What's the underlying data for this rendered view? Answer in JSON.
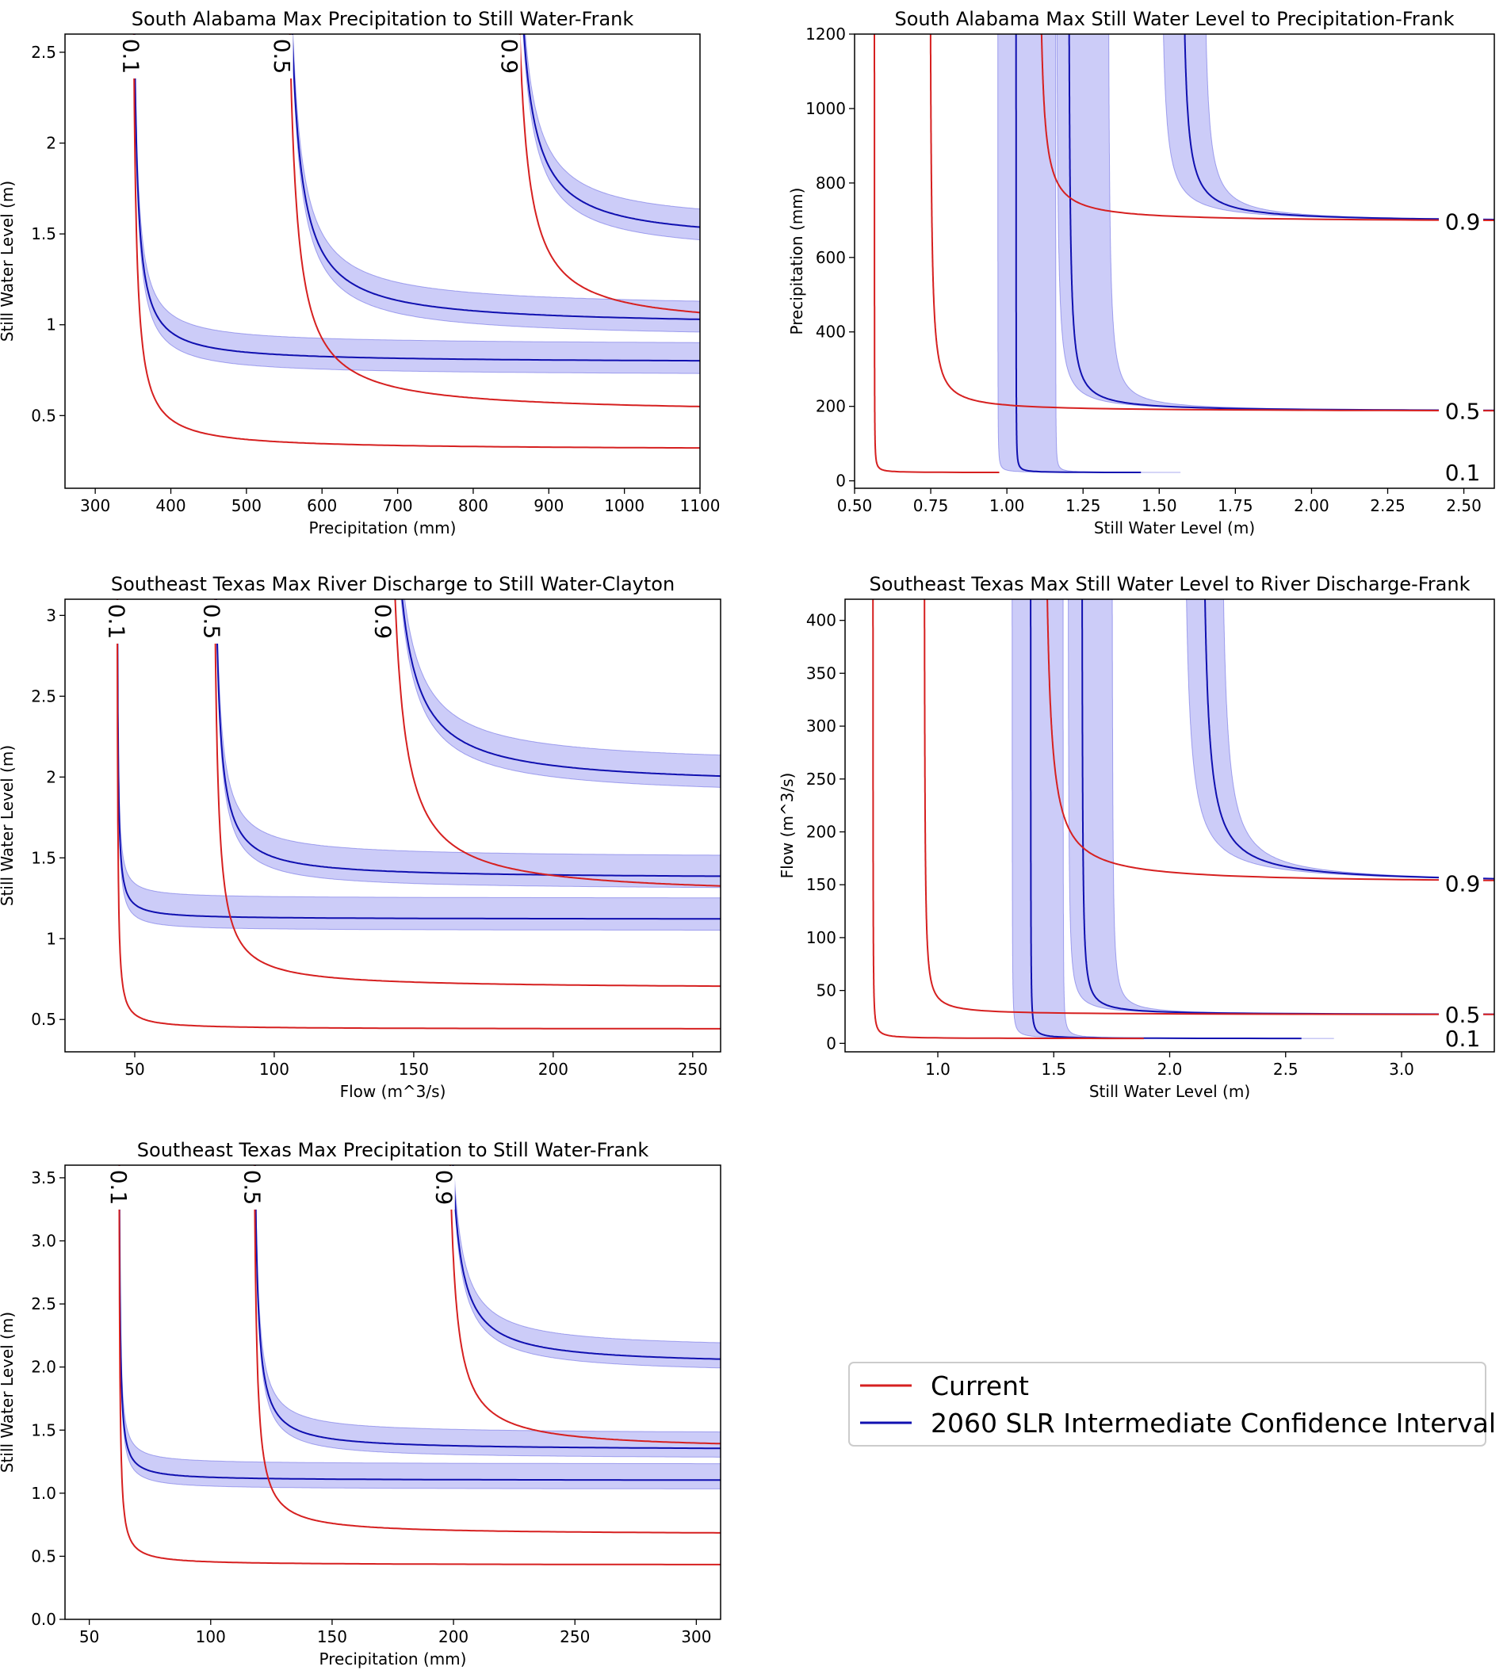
{
  "legend": {
    "items": [
      {
        "label": "Current",
        "color": "#d62020"
      },
      {
        "label": "2060 SLR Intermediate Confidence Interval",
        "color": "#1010b0"
      }
    ]
  },
  "chart_data": [
    {
      "type": "line",
      "id": "sa-precip",
      "title": "South Alabama Max Precipitation to Still Water-Frank",
      "xlabel": "Precipitation (mm)",
      "ylabel": "Still Water Level (m)",
      "xlim": [
        260,
        1100
      ],
      "ylim": [
        0.1,
        2.6
      ],
      "xticks": [
        300,
        400,
        500,
        600,
        700,
        800,
        900,
        1000,
        1100
      ],
      "yticks": [
        0.5,
        1.0,
        1.5,
        2.0,
        2.5
      ],
      "orientation": "vertical-asymptote",
      "contours": [
        {
          "level": "0.1",
          "current": {
            "asym_x": 347,
            "asym_y": 0.31,
            "k": 9
          },
          "slr": {
            "asym_x": 347,
            "asym_y": 0.79,
            "k": 9,
            "band_lo": -0.07,
            "band_hi": 0.1
          }
        },
        {
          "level": "0.5",
          "current": {
            "asym_x": 547,
            "asym_y": 0.51,
            "k": 22
          },
          "slr": {
            "asym_x": 547,
            "asym_y": 0.99,
            "k": 22,
            "band_lo": -0.07,
            "band_hi": 0.1
          }
        },
        {
          "level": "0.9",
          "current": {
            "asym_x": 848,
            "asym_y": 0.98,
            "k": 22
          },
          "slr": {
            "asym_x": 848,
            "asym_y": 1.45,
            "k": 22,
            "band_lo": -0.07,
            "band_hi": 0.1
          }
        }
      ]
    },
    {
      "type": "line",
      "id": "sa-swl",
      "title": "South Alabama Max Still Water Level to Precipitation-Frank",
      "xlabel": "Still Water Level (m)",
      "ylabel": "Precipitation (mm)",
      "xlim": [
        0.5,
        2.6
      ],
      "ylim": [
        -20,
        1200
      ],
      "xticks": [
        0.5,
        0.75,
        1.0,
        1.25,
        1.5,
        1.75,
        2.0,
        2.25,
        2.5
      ],
      "xtick_labels": [
        "0.50",
        "0.75",
        "1.00",
        "1.25",
        "1.50",
        "1.75",
        "2.00",
        "2.25",
        "2.50"
      ],
      "yticks": [
        0,
        200,
        400,
        600,
        800,
        1000,
        1200
      ],
      "orientation": "horizontal-asymptote",
      "contours": [
        {
          "level": "0.1",
          "current": {
            "asym_x": 0.565,
            "asym_y": 22,
            "k": 0.2
          },
          "slr": {
            "asym_x": 1.03,
            "asym_y": 22,
            "k": 0.2,
            "band_lo": -0.06,
            "band_hi": 0.13
          }
        },
        {
          "level": "0.5",
          "current": {
            "asym_x": 0.745,
            "asym_y": 186,
            "k": 4.5
          },
          "slr": {
            "asym_x": 1.2,
            "asym_y": 186,
            "k": 4.5,
            "band_lo": -0.04,
            "band_hi": 0.13
          }
        },
        {
          "level": "0.9",
          "current": {
            "asym_x": 1.1,
            "asym_y": 695,
            "k": 7
          },
          "slr": {
            "asym_x": 1.57,
            "asym_y": 695,
            "k": 7,
            "band_lo": -0.07,
            "band_hi": 0.07
          }
        }
      ]
    },
    {
      "type": "line",
      "id": "setx-flow",
      "title": "Southeast Texas Max River Discharge to Still Water-Clayton",
      "xlabel": "Flow (m^3/s)",
      "ylabel": "Still Water Level (m)",
      "xlim": [
        25,
        260
      ],
      "ylim": [
        0.3,
        3.1
      ],
      "xticks": [
        50,
        100,
        150,
        200,
        250
      ],
      "yticks": [
        0.5,
        1.0,
        1.5,
        2.0,
        2.5,
        3.0
      ],
      "orientation": "vertical-asymptote",
      "contours": [
        {
          "level": "0.1",
          "current": {
            "asym_x": 43.5,
            "asym_y": 0.44,
            "k": 0.6
          },
          "slr": {
            "asym_x": 43.5,
            "asym_y": 1.12,
            "k": 0.6,
            "band_lo": -0.07,
            "band_hi": 0.13
          }
        },
        {
          "level": "0.5",
          "current": {
            "asym_x": 77.5,
            "asym_y": 0.69,
            "k": 3
          },
          "slr": {
            "asym_x": 77.5,
            "asym_y": 1.37,
            "k": 3,
            "band_lo": -0.07,
            "band_hi": 0.13
          }
        },
        {
          "level": "0.9",
          "current": {
            "asym_x": 139,
            "asym_y": 1.26,
            "k": 8
          },
          "slr": {
            "asym_x": 139,
            "asym_y": 1.94,
            "k": 8,
            "band_lo": -0.07,
            "band_hi": 0.13
          }
        }
      ]
    },
    {
      "type": "line",
      "id": "setx-swl",
      "title": "Southeast Texas Max Still Water Level to River Discharge-Frank",
      "xlabel": "Still Water Level (m)",
      "ylabel": "Flow (m^3/s)",
      "xlim": [
        0.6,
        3.4
      ],
      "ylim": [
        -8,
        420
      ],
      "xticks": [
        1.0,
        1.5,
        2.0,
        2.5,
        3.0
      ],
      "xtick_labels": [
        "1.0",
        "1.5",
        "2.0",
        "2.5",
        "3.0"
      ],
      "yticks": [
        0,
        50,
        100,
        150,
        200,
        250,
        300,
        350,
        400
      ],
      "orientation": "horizontal-asymptote",
      "contours": [
        {
          "level": "0.1",
          "current": {
            "asym_x": 0.72,
            "asym_y": 4.5,
            "k": 0.2
          },
          "slr": {
            "asym_x": 1.4,
            "asym_y": 4.5,
            "k": 0.2,
            "band_lo": -0.08,
            "band_hi": 0.14
          }
        },
        {
          "level": "0.5",
          "current": {
            "asym_x": 0.94,
            "asym_y": 27,
            "k": 1
          },
          "slr": {
            "asym_x": 1.62,
            "asym_y": 27,
            "k": 1,
            "band_lo": -0.06,
            "band_hi": 0.13
          }
        },
        {
          "level": "0.9",
          "current": {
            "asym_x": 1.45,
            "asym_y": 151,
            "k": 6
          },
          "slr": {
            "asym_x": 2.13,
            "asym_y": 151,
            "k": 6,
            "band_lo": -0.08,
            "band_hi": 0.08
          }
        }
      ]
    },
    {
      "type": "line",
      "id": "setx-precip",
      "title": "Southeast Texas Max Precipitation to Still Water-Frank",
      "xlabel": "Precipitation (mm)",
      "ylabel": "Still Water Level (m)",
      "xlim": [
        40,
        310
      ],
      "ylim": [
        0.0,
        3.6
      ],
      "xticks": [
        50,
        100,
        150,
        200,
        250,
        300
      ],
      "yticks": [
        0.0,
        0.5,
        1.0,
        1.5,
        2.0,
        2.5,
        3.0,
        3.5
      ],
      "ytick_labels": [
        "0.0",
        "0.5",
        "1.0",
        "1.5",
        "2.0",
        "2.5",
        "3.0",
        "3.5"
      ],
      "orientation": "vertical-asymptote",
      "contours": [
        {
          "level": "0.1",
          "current": {
            "asym_x": 62,
            "asym_y": 0.43,
            "k": 1
          },
          "slr": {
            "asym_x": 62,
            "asym_y": 1.1,
            "k": 1,
            "band_lo": -0.07,
            "band_hi": 0.13
          }
        },
        {
          "level": "0.5",
          "current": {
            "asym_x": 117,
            "asym_y": 0.67,
            "k": 3
          },
          "slr": {
            "asym_x": 117,
            "asym_y": 1.34,
            "k": 3,
            "band_lo": -0.07,
            "band_hi": 0.13
          }
        },
        {
          "level": "0.9",
          "current": {
            "asym_x": 196,
            "asym_y": 1.34,
            "k": 6
          },
          "slr": {
            "asym_x": 196,
            "asym_y": 2.01,
            "k": 6,
            "band_lo": -0.07,
            "band_hi": 0.13
          }
        }
      ]
    }
  ]
}
